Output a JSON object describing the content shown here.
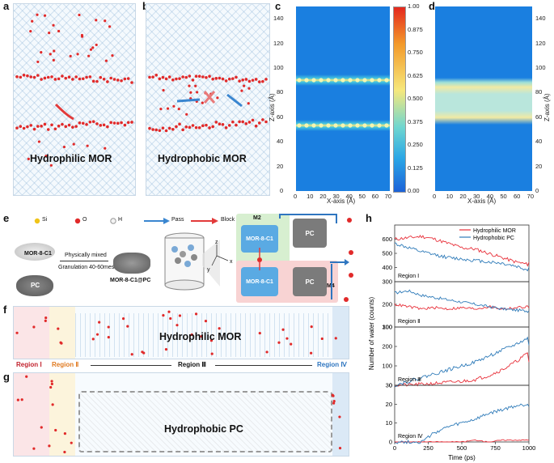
{
  "panels": {
    "a": {
      "label": "a",
      "title": "Hydrophilic MOR"
    },
    "b": {
      "label": "b",
      "title": "Hydrophobic MOR"
    },
    "c": {
      "label": "c",
      "xlabel": "X-axis (Å)",
      "ylabel": "Z-axis (Å)"
    },
    "d": {
      "label": "d",
      "xlabel": "X-axis (Å)",
      "ylabel": "Z-axis (Å)"
    },
    "e": {
      "label": "e"
    },
    "f": {
      "label": "f",
      "title": "Hydrophilic MOR"
    },
    "g": {
      "label": "g",
      "title": "Hydrophobic PC"
    },
    "h": {
      "label": "h"
    }
  },
  "axes_cd": {
    "y_ticks": [
      "0",
      "20",
      "40",
      "60",
      "80",
      "100",
      "120",
      "140"
    ],
    "x_ticks": [
      "0",
      "10",
      "20",
      "30",
      "40",
      "50",
      "60",
      "70"
    ],
    "colorbar_ticks": [
      "1.00",
      "0.875",
      "0.750",
      "0.625",
      "0.500",
      "0.375",
      "0.250",
      "0.125",
      "0.00"
    ]
  },
  "legend_e": {
    "si": "Si",
    "o": "O",
    "h": "H",
    "pass": "Pass",
    "block": "Block"
  },
  "scheme_e": {
    "mor_label": "MOR-8-C1",
    "pc_label": "PC",
    "mix_step": "Physically mixed",
    "gran_step": "Granulation 40-60mesh",
    "product": "MOR-8-C1@PC",
    "m2": "M2",
    "m4": "M4",
    "box_mor_top": "MOR-8-C1",
    "box_mor_bottom": "MOR-8-C1",
    "box_pc_top": "PC",
    "box_pc_bottom": "PC",
    "axis_z": "z",
    "axis_x": "x",
    "axis_y": "y"
  },
  "regions": {
    "r1": "Region Ⅰ",
    "r2": "Region Ⅱ",
    "r3": "Region Ⅲ",
    "r4": "Region Ⅳ"
  },
  "chart_data": {
    "type": "line",
    "xlabel": "Time (ps)",
    "ylabel": "Number of water (counts)",
    "x_ticks": [
      "0",
      "250",
      "500",
      "750",
      "1000"
    ],
    "legend": [
      "Hydrophilic   MOR",
      "Hydrophobic PC"
    ],
    "colors": {
      "hydrophilic": "#e8303a",
      "hydrophobic": "#2f7bb9"
    },
    "subplots": [
      {
        "region": "Region Ⅰ",
        "ylim": [
          300,
          700
        ],
        "y_ticks": [
          "300",
          "400",
          "500",
          "600"
        ],
        "x": [
          0,
          100,
          200,
          300,
          400,
          500,
          600,
          700,
          800,
          900,
          1000
        ],
        "series": [
          {
            "name": "Hydrophilic MOR",
            "values": [
              600,
              610,
              620,
              600,
              570,
              540,
              530,
              500,
              470,
              440,
              420
            ]
          },
          {
            "name": "Hydrophobic PC",
            "values": [
              570,
              540,
              510,
              490,
              470,
              460,
              450,
              440,
              430,
              410,
              380
            ]
          }
        ]
      },
      {
        "region": "Region Ⅱ",
        "ylim": [
          100,
          300
        ],
        "y_ticks": [
          "100",
          "200"
        ],
        "x": [
          0,
          100,
          200,
          300,
          400,
          500,
          600,
          700,
          800,
          900,
          1000
        ],
        "series": [
          {
            "name": "Hydrophilic MOR",
            "values": [
              200,
              190,
              180,
              185,
              180,
              185,
              180,
              190,
              180,
              185,
              190
            ]
          },
          {
            "name": "Hydrophobic PC",
            "values": [
              250,
              260,
              240,
              230,
              220,
              210,
              200,
              190,
              180,
              175,
              170
            ]
          }
        ]
      },
      {
        "region": "Region Ⅲ",
        "ylim": [
          0,
          300
        ],
        "y_ticks": [
          "0",
          "100",
          "200",
          "300"
        ],
        "x": [
          0,
          100,
          200,
          300,
          400,
          500,
          600,
          700,
          800,
          900,
          1000
        ],
        "series": [
          {
            "name": "Hydrophilic MOR",
            "values": [
              0,
              2,
              5,
              10,
              15,
              20,
              30,
              50,
              80,
              120,
              170
            ]
          },
          {
            "name": "Hydrophobic PC",
            "values": [
              0,
              20,
              40,
              60,
              80,
              100,
              120,
              150,
              180,
              210,
              245
            ]
          }
        ]
      },
      {
        "region": "Region Ⅳ",
        "ylim": [
          0,
          30
        ],
        "y_ticks": [
          "0",
          "10",
          "20",
          "30"
        ],
        "x": [
          0,
          100,
          200,
          300,
          400,
          500,
          600,
          700,
          800,
          900,
          1000
        ],
        "series": [
          {
            "name": "Hydrophilic MOR",
            "values": [
              0,
              0,
              0,
              0,
              0,
              0,
              1,
              0,
              1,
              1,
              1
            ]
          },
          {
            "name": "Hydrophobic PC",
            "values": [
              0,
              0,
              0,
              5,
              8,
              10,
              12,
              15,
              17,
              19,
              20
            ]
          }
        ]
      }
    ]
  }
}
